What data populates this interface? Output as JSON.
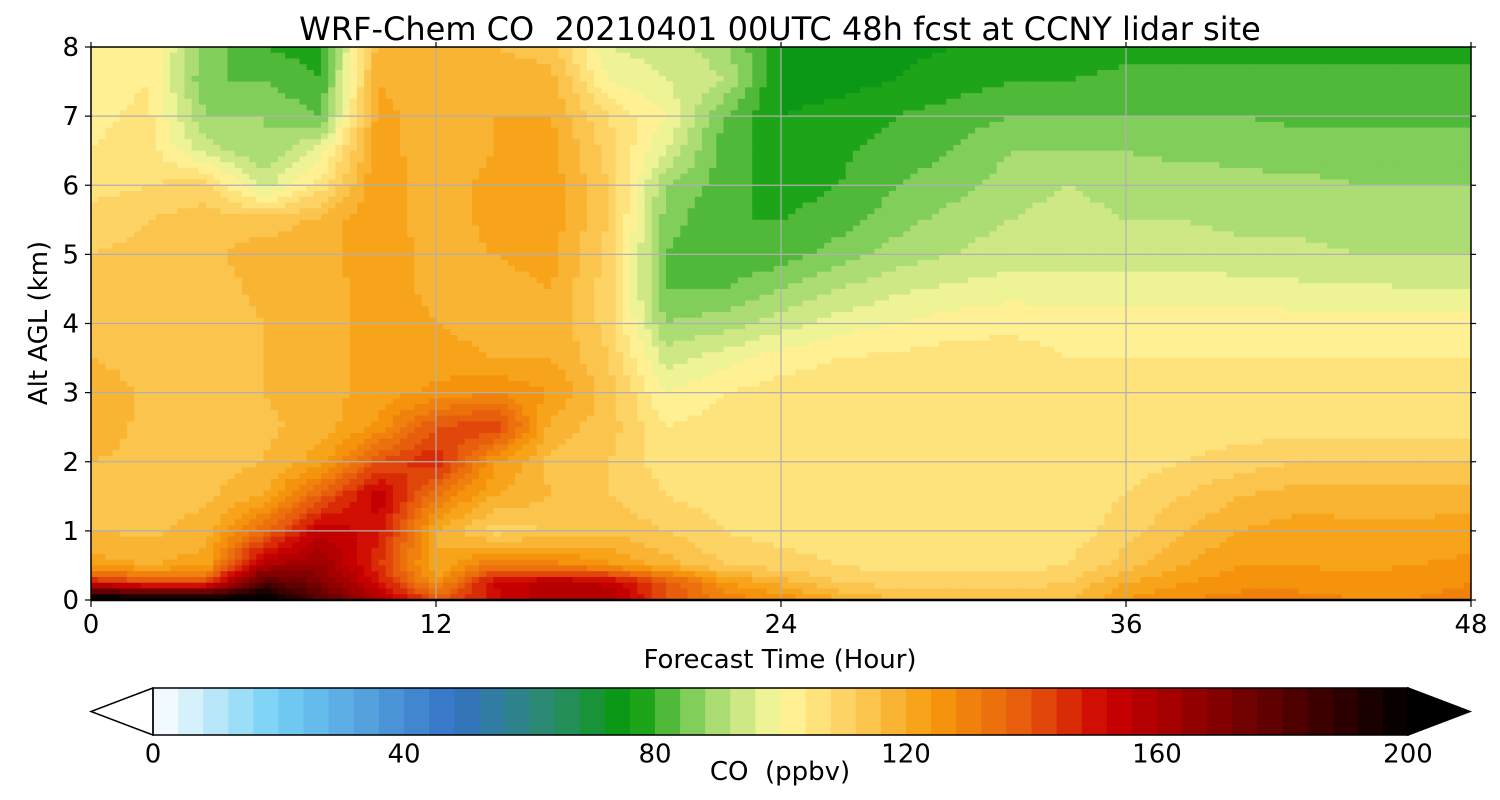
{
  "chart_data": {
    "type": "heatmap",
    "title": "WRF-Chem CO  20210401 00UTC 48h fcst at CCNY lidar site",
    "xlabel": "Forecast Time (Hour)",
    "ylabel": "Alt AGL (km)",
    "xlim": [
      0,
      48
    ],
    "ylim": [
      0,
      8
    ],
    "x_ticks": [
      0,
      12,
      24,
      36,
      48
    ],
    "y_ticks": [
      0,
      1,
      2,
      3,
      4,
      5,
      6,
      7,
      8
    ],
    "grid": true,
    "x": [
      0,
      2,
      4,
      6,
      8,
      10,
      12,
      14,
      16,
      18,
      20,
      22,
      24,
      26,
      28,
      30,
      32,
      34,
      36,
      38,
      40,
      42,
      44,
      46,
      48
    ],
    "y": [
      0,
      0.25,
      0.5,
      1,
      1.5,
      2,
      2.5,
      3,
      3.5,
      4,
      4.5,
      5,
      5.5,
      6,
      6.5,
      7,
      7.5,
      8
    ],
    "z": [
      [
        208,
        205,
        202,
        205,
        180,
        160,
        140,
        150,
        160,
        160,
        140,
        130,
        128,
        120,
        116,
        114,
        114,
        116,
        124,
        128,
        130,
        130,
        128,
        128,
        130
      ],
      [
        150,
        140,
        142,
        182,
        170,
        150,
        125,
        152,
        158,
        155,
        140,
        125,
        118,
        112,
        110,
        110,
        110,
        112,
        120,
        124,
        126,
        126,
        125,
        126,
        128
      ],
      [
        122,
        120,
        122,
        160,
        165,
        145,
        120,
        132,
        130,
        125,
        118,
        112,
        110,
        108,
        106,
        106,
        106,
        108,
        114,
        120,
        124,
        124,
        123,
        124,
        125
      ],
      [
        116,
        115,
        118,
        135,
        155,
        150,
        120,
        110,
        112,
        115,
        112,
        108,
        106,
        106,
        104,
        104,
        104,
        106,
        110,
        116,
        120,
        122,
        121,
        121,
        122
      ],
      [
        114,
        114,
        115,
        120,
        138,
        155,
        132,
        120,
        116,
        112,
        108,
        106,
        106,
        106,
        104,
        104,
        104,
        106,
        108,
        112,
        116,
        118,
        118,
        118,
        118
      ],
      [
        116,
        115,
        114,
        116,
        122,
        140,
        148,
        125,
        115,
        112,
        106,
        104,
        106,
        106,
        104,
        104,
        104,
        106,
        106,
        108,
        110,
        112,
        112,
        112,
        112
      ],
      [
        118,
        115,
        114,
        115,
        118,
        125,
        140,
        144,
        118,
        114,
        104,
        106,
        106,
        106,
        106,
        106,
        106,
        106,
        106,
        106,
        106,
        106,
        106,
        106,
        106
      ],
      [
        119,
        115,
        114,
        116,
        118,
        122,
        125,
        128,
        124,
        114,
        100,
        104,
        106,
        106,
        106,
        106,
        106,
        106,
        106,
        106,
        106,
        106,
        106,
        106,
        106
      ],
      [
        116,
        114,
        114,
        116,
        118,
        122,
        122,
        120,
        120,
        112,
        94,
        98,
        102,
        104,
        105,
        106,
        106,
        104,
        104,
        104,
        104,
        104,
        104,
        104,
        104
      ],
      [
        114,
        113,
        114,
        116,
        118,
        122,
        120,
        118,
        120,
        110,
        88,
        90,
        94,
        98,
        100,
        102,
        103,
        102,
        102,
        102,
        102,
        102,
        102,
        102,
        102
      ],
      [
        113,
        113,
        114,
        117,
        118,
        122,
        119,
        118,
        120,
        110,
        84,
        84,
        88,
        92,
        95,
        97,
        98,
        98,
        98,
        98,
        98,
        97,
        97,
        96,
        96
      ],
      [
        112,
        113,
        115,
        118,
        118,
        124,
        118,
        120,
        122,
        110,
        84,
        80,
        82,
        86,
        90,
        92,
        94,
        94,
        94,
        94,
        93,
        93,
        92,
        92,
        92
      ],
      [
        110,
        112,
        114,
        114,
        117,
        124,
        116,
        122,
        122,
        112,
        86,
        80,
        80,
        82,
        86,
        90,
        92,
        94,
        92,
        92,
        91,
        91,
        90,
        90,
        90
      ],
      [
        106,
        108,
        110,
        94,
        106,
        124,
        116,
        122,
        122,
        112,
        88,
        82,
        78,
        80,
        84,
        86,
        90,
        92,
        90,
        90,
        89,
        89,
        88,
        88,
        88
      ],
      [
        104,
        106,
        94,
        88,
        98,
        123,
        116,
        120,
        122,
        110,
        96,
        82,
        78,
        79,
        82,
        84,
        88,
        88,
        88,
        87,
        87,
        86,
        86,
        86,
        86
      ],
      [
        103,
        105,
        88,
        88,
        84,
        122,
        116,
        120,
        120,
        108,
        100,
        84,
        76,
        77,
        80,
        82,
        84,
        84,
        84,
        84,
        84,
        83,
        83,
        83,
        83
      ],
      [
        102,
        104,
        84,
        84,
        80,
        120,
        116,
        118,
        118,
        100,
        96,
        92,
        75,
        75,
        76,
        78,
        80,
        80,
        81,
        81,
        81,
        81,
        81,
        81,
        81
      ],
      [
        102,
        104,
        86,
        80,
        78,
        118,
        116,
        116,
        114,
        96,
        94,
        90,
        76,
        74,
        75,
        76,
        77,
        78,
        79,
        79,
        79,
        79,
        79,
        79,
        79
      ]
    ],
    "colorbar": {
      "label": "CO  (ppbv)",
      "min": 0,
      "max": 200,
      "step": 4,
      "ticks": [
        0,
        40,
        80,
        120,
        160,
        200
      ],
      "extend": "both",
      "stops": [
        {
          "v": 0,
          "c": "#ffffff"
        },
        {
          "v": 20,
          "c": "#72cff5"
        },
        {
          "v": 48,
          "c": "#3572c6"
        },
        {
          "v": 64,
          "c": "#2a8c68"
        },
        {
          "v": 76,
          "c": "#059a07"
        },
        {
          "v": 88,
          "c": "#9bd86c"
        },
        {
          "v": 100,
          "c": "#fff89e"
        },
        {
          "v": 112,
          "c": "#fccc5a"
        },
        {
          "v": 124,
          "c": "#f79c0d"
        },
        {
          "v": 140,
          "c": "#e5550c"
        },
        {
          "v": 152,
          "c": "#cd0000"
        },
        {
          "v": 172,
          "c": "#7a0000"
        },
        {
          "v": 200,
          "c": "#000000"
        }
      ]
    }
  }
}
